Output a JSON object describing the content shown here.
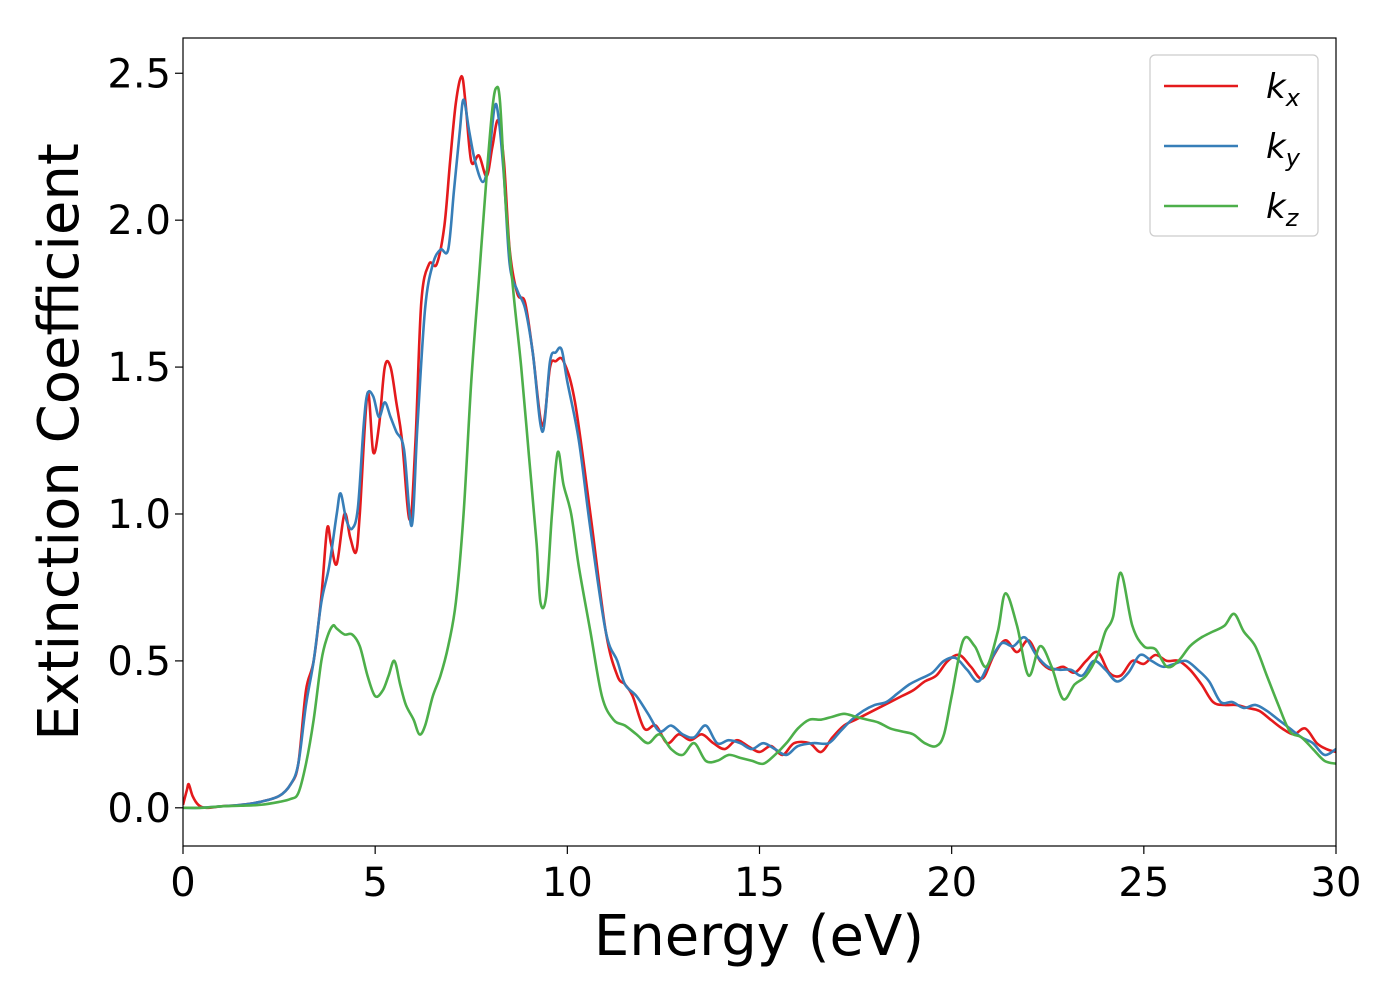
{
  "chart_data": {
    "type": "line",
    "title": "",
    "xlabel": "Energy (eV)",
    "ylabel": "Extinction Coefficient",
    "xlim": [
      0,
      30
    ],
    "ylim": [
      -0.13,
      2.62
    ],
    "xticks": [
      0,
      5,
      10,
      15,
      20,
      25,
      30
    ],
    "xtick_labels": [
      "0",
      "5",
      "10",
      "15",
      "20",
      "25",
      "30"
    ],
    "yticks": [
      0.0,
      0.5,
      1.0,
      1.5,
      2.0,
      2.5
    ],
    "ytick_labels": [
      "0.0",
      "0.5",
      "1.0",
      "1.5",
      "2.0",
      "2.5"
    ],
    "grid": false,
    "legend_position": "top-right",
    "series": [
      {
        "name": "kx",
        "label_base": "k",
        "label_sub": "x",
        "color": "#e41a1c",
        "x": [
          0,
          0.1,
          0.15,
          0.25,
          0.4,
          0.6,
          1.0,
          1.5,
          2.0,
          2.5,
          2.8,
          3.0,
          3.2,
          3.4,
          3.6,
          3.75,
          3.85,
          4.0,
          4.2,
          4.35,
          4.5,
          4.6,
          4.8,
          4.95,
          5.1,
          5.25,
          5.4,
          5.55,
          5.7,
          5.9,
          6.05,
          6.2,
          6.4,
          6.6,
          6.8,
          6.95,
          7.1,
          7.25,
          7.35,
          7.5,
          7.7,
          7.9,
          8.05,
          8.2,
          8.35,
          8.5,
          8.7,
          8.9,
          9.1,
          9.35,
          9.55,
          9.7,
          9.9,
          10.2,
          10.6,
          11.0,
          11.3,
          11.5,
          11.7,
          12.0,
          12.3,
          12.6,
          12.9,
          13.2,
          13.5,
          13.8,
          14.1,
          14.4,
          14.7,
          15.0,
          15.3,
          15.6,
          15.9,
          16.3,
          16.6,
          16.9,
          17.2,
          17.5,
          17.8,
          18.1,
          18.4,
          18.7,
          19.0,
          19.3,
          19.6,
          19.9,
          20.2,
          20.5,
          20.8,
          21.1,
          21.4,
          21.7,
          22.0,
          22.3,
          22.6,
          22.9,
          23.2,
          23.5,
          23.8,
          24.1,
          24.4,
          24.7,
          25.0,
          25.3,
          25.6,
          25.9,
          26.2,
          26.5,
          26.8,
          27.1,
          27.4,
          27.7,
          28.0,
          28.3,
          28.6,
          28.9,
          29.2,
          29.5,
          29.75,
          30.0
        ],
        "y": [
          0.01,
          0.06,
          0.08,
          0.04,
          0.01,
          0.0,
          0.005,
          0.01,
          0.02,
          0.04,
          0.08,
          0.15,
          0.4,
          0.5,
          0.72,
          0.95,
          0.9,
          0.83,
          1.0,
          0.92,
          0.87,
          1.0,
          1.41,
          1.21,
          1.3,
          1.5,
          1.5,
          1.38,
          1.25,
          0.98,
          1.25,
          1.72,
          1.85,
          1.85,
          1.98,
          2.2,
          2.4,
          2.49,
          2.4,
          2.2,
          2.22,
          2.15,
          2.25,
          2.34,
          2.2,
          1.9,
          1.75,
          1.72,
          1.55,
          1.3,
          1.5,
          1.52,
          1.52,
          1.38,
          1.0,
          0.6,
          0.45,
          0.42,
          0.38,
          0.27,
          0.28,
          0.22,
          0.25,
          0.23,
          0.25,
          0.22,
          0.2,
          0.23,
          0.21,
          0.19,
          0.21,
          0.18,
          0.22,
          0.22,
          0.19,
          0.24,
          0.28,
          0.3,
          0.32,
          0.34,
          0.36,
          0.38,
          0.4,
          0.43,
          0.45,
          0.5,
          0.52,
          0.48,
          0.44,
          0.52,
          0.57,
          0.53,
          0.57,
          0.5,
          0.47,
          0.48,
          0.46,
          0.5,
          0.53,
          0.46,
          0.45,
          0.5,
          0.49,
          0.52,
          0.5,
          0.5,
          0.47,
          0.42,
          0.36,
          0.35,
          0.35,
          0.34,
          0.33,
          0.3,
          0.27,
          0.25,
          0.27,
          0.22,
          0.2,
          0.19
        ]
      },
      {
        "name": "ky",
        "label_base": "k",
        "label_sub": "y",
        "color": "#377eb8",
        "x": [
          0,
          0.4,
          1.0,
          1.5,
          2.0,
          2.5,
          2.8,
          3.0,
          3.2,
          3.4,
          3.6,
          3.8,
          4.0,
          4.1,
          4.25,
          4.4,
          4.55,
          4.7,
          4.8,
          4.95,
          5.1,
          5.25,
          5.4,
          5.55,
          5.75,
          5.95,
          6.1,
          6.3,
          6.5,
          6.7,
          6.9,
          7.05,
          7.2,
          7.3,
          7.45,
          7.6,
          7.8,
          7.95,
          8.1,
          8.2,
          8.35,
          8.5,
          8.7,
          8.9,
          9.1,
          9.35,
          9.55,
          9.7,
          9.85,
          10.0,
          10.3,
          10.6,
          11.0,
          11.3,
          11.5,
          11.8,
          12.1,
          12.4,
          12.7,
          13.0,
          13.3,
          13.6,
          13.9,
          14.2,
          14.5,
          14.8,
          15.1,
          15.4,
          15.7,
          16.0,
          16.4,
          16.8,
          17.1,
          17.4,
          17.7,
          18.0,
          18.3,
          18.6,
          18.9,
          19.2,
          19.5,
          19.8,
          20.1,
          20.4,
          20.7,
          21.0,
          21.3,
          21.6,
          21.9,
          22.2,
          22.5,
          22.8,
          23.1,
          23.4,
          23.7,
          24.0,
          24.3,
          24.6,
          24.9,
          25.2,
          25.5,
          25.8,
          26.1,
          26.4,
          26.7,
          27.0,
          27.3,
          27.6,
          27.9,
          28.2,
          28.5,
          28.8,
          29.1,
          29.4,
          29.7,
          30.0
        ],
        "y": [
          0.0,
          0.0,
          0.005,
          0.01,
          0.02,
          0.04,
          0.08,
          0.15,
          0.35,
          0.5,
          0.7,
          0.82,
          1.0,
          1.07,
          0.98,
          0.95,
          1.02,
          1.3,
          1.41,
          1.4,
          1.33,
          1.38,
          1.33,
          1.28,
          1.22,
          0.96,
          1.3,
          1.7,
          1.85,
          1.9,
          1.9,
          2.1,
          2.3,
          2.41,
          2.3,
          2.2,
          2.13,
          2.2,
          2.38,
          2.36,
          2.15,
          1.85,
          1.76,
          1.7,
          1.55,
          1.28,
          1.52,
          1.55,
          1.56,
          1.45,
          1.25,
          0.95,
          0.6,
          0.5,
          0.42,
          0.38,
          0.32,
          0.26,
          0.28,
          0.25,
          0.24,
          0.28,
          0.22,
          0.23,
          0.22,
          0.2,
          0.22,
          0.2,
          0.18,
          0.21,
          0.22,
          0.22,
          0.26,
          0.3,
          0.33,
          0.35,
          0.36,
          0.39,
          0.42,
          0.44,
          0.46,
          0.5,
          0.51,
          0.47,
          0.43,
          0.5,
          0.56,
          0.55,
          0.58,
          0.52,
          0.48,
          0.47,
          0.47,
          0.45,
          0.5,
          0.47,
          0.43,
          0.46,
          0.52,
          0.5,
          0.48,
          0.49,
          0.5,
          0.47,
          0.43,
          0.36,
          0.36,
          0.34,
          0.35,
          0.33,
          0.3,
          0.27,
          0.24,
          0.22,
          0.18,
          0.2
        ]
      },
      {
        "name": "kz",
        "label_base": "k",
        "label_sub": "z",
        "color": "#4daf4a",
        "x": [
          0,
          0.5,
          1.0,
          1.5,
          2.0,
          2.5,
          2.8,
          3.0,
          3.2,
          3.4,
          3.6,
          3.75,
          3.9,
          4.0,
          4.2,
          4.4,
          4.6,
          4.8,
          5.0,
          5.2,
          5.35,
          5.5,
          5.65,
          5.8,
          6.0,
          6.15,
          6.3,
          6.5,
          6.7,
          6.9,
          7.1,
          7.3,
          7.5,
          7.7,
          7.9,
          8.05,
          8.15,
          8.25,
          8.4,
          8.6,
          8.8,
          9.0,
          9.2,
          9.3,
          9.45,
          9.6,
          9.75,
          9.9,
          10.1,
          10.3,
          10.6,
          10.9,
          11.2,
          11.5,
          11.8,
          12.1,
          12.4,
          12.7,
          13.0,
          13.3,
          13.6,
          13.9,
          14.2,
          14.5,
          14.8,
          15.1,
          15.4,
          15.7,
          16.0,
          16.3,
          16.6,
          16.9,
          17.2,
          17.5,
          17.8,
          18.1,
          18.4,
          18.7,
          19.0,
          19.3,
          19.6,
          19.8,
          20.0,
          20.3,
          20.6,
          20.9,
          21.2,
          21.4,
          21.7,
          22.0,
          22.3,
          22.6,
          22.9,
          23.2,
          23.5,
          23.8,
          24.0,
          24.2,
          24.4,
          24.7,
          25.0,
          25.3,
          25.6,
          25.9,
          26.2,
          26.5,
          26.8,
          27.1,
          27.35,
          27.6,
          27.9,
          28.2,
          28.5,
          28.8,
          29.1,
          29.4,
          29.7,
          30.0
        ],
        "y": [
          0.0,
          0.0,
          0.005,
          0.007,
          0.01,
          0.02,
          0.03,
          0.05,
          0.15,
          0.3,
          0.5,
          0.58,
          0.62,
          0.61,
          0.59,
          0.59,
          0.55,
          0.45,
          0.38,
          0.4,
          0.45,
          0.5,
          0.42,
          0.35,
          0.3,
          0.25,
          0.28,
          0.38,
          0.45,
          0.55,
          0.7,
          1.0,
          1.45,
          1.8,
          2.15,
          2.38,
          2.45,
          2.4,
          2.05,
          1.75,
          1.5,
          1.2,
          0.9,
          0.7,
          0.72,
          1.0,
          1.21,
          1.1,
          1.0,
          0.82,
          0.6,
          0.38,
          0.3,
          0.28,
          0.25,
          0.22,
          0.25,
          0.2,
          0.18,
          0.22,
          0.16,
          0.16,
          0.18,
          0.17,
          0.16,
          0.15,
          0.18,
          0.22,
          0.27,
          0.3,
          0.3,
          0.31,
          0.32,
          0.31,
          0.3,
          0.29,
          0.27,
          0.26,
          0.25,
          0.22,
          0.21,
          0.25,
          0.38,
          0.57,
          0.55,
          0.48,
          0.6,
          0.73,
          0.62,
          0.45,
          0.55,
          0.48,
          0.37,
          0.42,
          0.45,
          0.52,
          0.6,
          0.65,
          0.8,
          0.62,
          0.55,
          0.54,
          0.48,
          0.5,
          0.55,
          0.58,
          0.6,
          0.62,
          0.66,
          0.6,
          0.55,
          0.45,
          0.35,
          0.26,
          0.24,
          0.2,
          0.16,
          0.15
        ]
      }
    ]
  }
}
